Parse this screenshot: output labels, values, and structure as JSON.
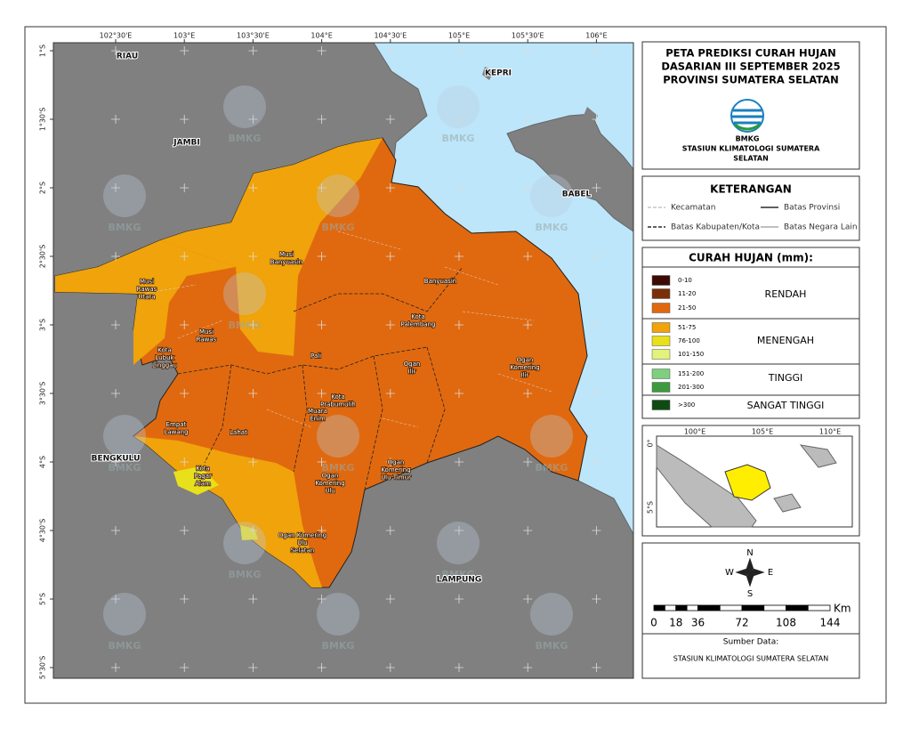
{
  "map": {
    "longitude_labels": [
      "102°30'E",
      "103°E",
      "103°30'E",
      "104°E",
      "104°30'E",
      "105°E",
      "105°30'E",
      "106°E"
    ],
    "latitude_labels": [
      "1°S",
      "1°30'S",
      "2°S",
      "2°30'S",
      "3°S",
      "3°30'S",
      "4°S",
      "4°30'S",
      "5°S",
      "5°30'S"
    ],
    "region_labels": [
      "RIAU",
      "JAMBI",
      "KEPRI",
      "BABEL",
      "BENGKULU",
      "LAMPUNG"
    ],
    "watermark": "BMKG",
    "districts": [
      {
        "lines": [
          "Musi",
          "Rawas",
          "Utara"
        ]
      },
      {
        "lines": [
          "Musi",
          "Banyuasin"
        ]
      },
      {
        "lines": [
          "Banyuasin"
        ]
      },
      {
        "lines": [
          "Musi",
          "Rawas"
        ]
      },
      {
        "lines": [
          "Kota",
          "Lubuk",
          "Linggau"
        ]
      },
      {
        "lines": [
          "Kota",
          "Palembang"
        ]
      },
      {
        "lines": [
          "Pali"
        ]
      },
      {
        "lines": [
          "Ogan",
          "Ilir"
        ]
      },
      {
        "lines": [
          "Ogan",
          "Komering",
          "Ilir"
        ]
      },
      {
        "lines": [
          "Kota",
          "Prabumulih"
        ]
      },
      {
        "lines": [
          "Muara",
          "Enim"
        ]
      },
      {
        "lines": [
          "Empat",
          "Lawang"
        ]
      },
      {
        "lines": [
          "Lahat"
        ]
      },
      {
        "lines": [
          "Kota",
          "Pagar",
          "Alam"
        ]
      },
      {
        "lines": [
          "Ogan",
          "Komering",
          "Ulu"
        ]
      },
      {
        "lines": [
          "Ogan",
          "Komering",
          "Ulu Timur"
        ]
      },
      {
        "lines": [
          "Ogan Komering",
          "Ulu",
          "Selatan"
        ]
      }
    ]
  },
  "panel": {
    "title": [
      "PETA PREDIKSI CURAH HUJAN",
      "DASARIAN III SEPTEMBER 2025",
      "PROVINSI SUMATERA SELATAN"
    ],
    "logo_text": "BMKG",
    "station": [
      "STASIUN KLIMATOLOGI SUMATERA",
      "SELATAN"
    ]
  },
  "legend": {
    "title": "KETERANGAN",
    "items": [
      "Kecamatan",
      "Batas Provinsi",
      "Batas Kabupaten/Kota",
      "Batas Negara Lain"
    ]
  },
  "rainfall": {
    "title": "CURAH HUJAN (mm):",
    "classes": [
      {
        "label": "0-10",
        "color": "#3d0a04"
      },
      {
        "label": "11-20",
        "color": "#7a2e0a"
      },
      {
        "label": "21-50",
        "color": "#e0690f"
      },
      {
        "label": "51-75",
        "color": "#f0a30a"
      },
      {
        "label": "76-100",
        "color": "#e8e01a"
      },
      {
        "label": "101-150",
        "color": "#e2f27a"
      },
      {
        "label": "151-200",
        "color": "#7ecf7e"
      },
      {
        "label": "201-300",
        "color": "#3e9a3e"
      },
      {
        "label": ">300",
        "color": "#0f4a12"
      }
    ],
    "groups": [
      "RENDAH",
      "MENENGAH",
      "TINGGI",
      "SANGAT TINGGI"
    ]
  },
  "inset": {
    "longitude_labels": [
      "100°E",
      "105°E",
      "110°E"
    ],
    "latitude_labels": [
      "0°",
      "5°S"
    ]
  },
  "compass": {
    "n": "N",
    "s": "S",
    "e": "E",
    "w": "W"
  },
  "scale": {
    "unit": "Km",
    "ticks": [
      0,
      18,
      36,
      72,
      108,
      144
    ]
  },
  "source": {
    "label": "Sumber Data:",
    "text": "STASIUN KLIMATOLOGI SUMATERA SELATAN"
  }
}
